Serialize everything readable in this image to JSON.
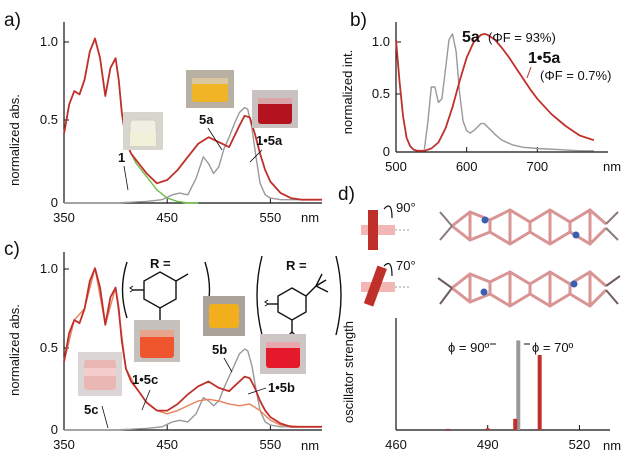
{
  "panels": {
    "a": {
      "label": "a)"
    },
    "b": {
      "label": "b)"
    },
    "c": {
      "label": "c)"
    },
    "d": {
      "label": "d)",
      "angle1": "90°",
      "angle2": "70°"
    }
  },
  "colors": {
    "red": "#c0302b",
    "gray": "#999999",
    "green": "#6cc04a",
    "orange": "#e8825a",
    "molecule": "#d99494",
    "nitrogen": "#3a5fb0"
  },
  "chart_data": [
    {
      "panel": "a",
      "type": "line",
      "title": "",
      "xlabel": "nm",
      "ylabel": "normalized abs.",
      "xlim": [
        350,
        600
      ],
      "ylim": [
        0,
        1.1
      ],
      "xticks": [
        350,
        450,
        550
      ],
      "yticks": [
        "0",
        "0.5",
        "1.0"
      ],
      "grid": false,
      "vial_labels": [
        "1",
        "5a",
        "1•5a"
      ],
      "series": [
        {
          "name": "1",
          "color": "green",
          "x": [
            350,
            355,
            360,
            365,
            370,
            375,
            380,
            385,
            390,
            395,
            400,
            403,
            406,
            410,
            415,
            420,
            430,
            440,
            450,
            460,
            470,
            480
          ],
          "y": [
            0.42,
            0.6,
            0.68,
            0.66,
            0.75,
            0.92,
            1.0,
            0.88,
            0.65,
            0.82,
            0.88,
            0.75,
            0.55,
            0.38,
            0.3,
            0.24,
            0.16,
            0.08,
            0.03,
            0.01,
            0.0,
            0.0
          ]
        },
        {
          "name": "5a",
          "color": "gray",
          "x": [
            350,
            400,
            430,
            445,
            455,
            462,
            470,
            478,
            485,
            490,
            495,
            500,
            505,
            510,
            515,
            520,
            525,
            528,
            532,
            536,
            540,
            545,
            550,
            560,
            575,
            590,
            600
          ],
          "y": [
            0.0,
            0.0,
            0.01,
            0.02,
            0.05,
            0.06,
            0.05,
            0.15,
            0.28,
            0.24,
            0.18,
            0.22,
            0.33,
            0.4,
            0.48,
            0.55,
            0.58,
            0.57,
            0.46,
            0.28,
            0.12,
            0.05,
            0.03,
            0.02,
            0.02,
            0.02,
            0.02
          ]
        },
        {
          "name": "1•5a",
          "color": "red",
          "x": [
            350,
            355,
            360,
            365,
            370,
            375,
            380,
            385,
            390,
            395,
            400,
            403,
            406,
            410,
            415,
            420,
            430,
            440,
            450,
            460,
            470,
            480,
            490,
            500,
            510,
            520,
            525,
            530,
            535,
            540,
            545,
            550,
            560,
            570,
            580,
            590,
            600
          ],
          "y": [
            0.42,
            0.6,
            0.68,
            0.66,
            0.75,
            0.92,
            1.0,
            0.88,
            0.65,
            0.82,
            0.88,
            0.75,
            0.55,
            0.38,
            0.3,
            0.26,
            0.18,
            0.12,
            0.14,
            0.2,
            0.28,
            0.36,
            0.4,
            0.37,
            0.34,
            0.47,
            0.53,
            0.52,
            0.42,
            0.3,
            0.2,
            0.13,
            0.06,
            0.03,
            0.02,
            0.02,
            0.02
          ]
        }
      ]
    },
    {
      "panel": "b",
      "type": "line",
      "title": "",
      "xlabel": "nm",
      "ylabel": "normalized int.",
      "xlim": [
        500,
        800
      ],
      "ylim": [
        0,
        1.1
      ],
      "xticks": [
        500,
        600,
        700
      ],
      "yticks": [
        "0",
        "0.5",
        "1.0"
      ],
      "grid": false,
      "annotations": {
        "s5a_name": "5a",
        "s5a_phi": "(ΦF = 93%)",
        "s15a_name": "1•5a",
        "s15a_phi": "(ΦF = 0.7%)"
      },
      "series": [
        {
          "name": "5a",
          "color": "gray",
          "x": [
            540,
            545,
            550,
            555,
            560,
            565,
            570,
            575,
            580,
            585,
            590,
            595,
            600,
            605,
            610,
            615,
            620,
            625,
            630,
            640,
            650,
            665,
            680,
            700,
            730,
            760,
            780
          ],
          "y": [
            0.02,
            0.25,
            0.55,
            0.55,
            0.42,
            0.45,
            0.7,
            0.95,
            1.0,
            0.85,
            0.5,
            0.26,
            0.18,
            0.16,
            0.18,
            0.21,
            0.24,
            0.24,
            0.21,
            0.15,
            0.1,
            0.06,
            0.04,
            0.03,
            0.02,
            0.01,
            0.01
          ]
        },
        {
          "name": "1•5a",
          "color": "red",
          "x": [
            500,
            505,
            510,
            515,
            520,
            525,
            530,
            540,
            550,
            560,
            570,
            580,
            590,
            600,
            610,
            620,
            625,
            630,
            640,
            650,
            660,
            670,
            680,
            690,
            700,
            720,
            740,
            760,
            780
          ],
          "y": [
            0.95,
            0.6,
            0.3,
            0.12,
            0.05,
            0.02,
            0.01,
            0.01,
            0.03,
            0.08,
            0.2,
            0.38,
            0.6,
            0.8,
            0.93,
            0.99,
            1.0,
            0.99,
            0.95,
            0.88,
            0.8,
            0.71,
            0.62,
            0.53,
            0.45,
            0.32,
            0.22,
            0.14,
            0.1
          ]
        }
      ]
    },
    {
      "panel": "c",
      "type": "line",
      "title": "",
      "xlabel": "nm",
      "ylabel": "normalized abs.",
      "xlim": [
        350,
        600
      ],
      "ylim": [
        0,
        1.1
      ],
      "xticks": [
        350,
        450,
        550
      ],
      "yticks": [
        "0",
        "0.5",
        "1.0"
      ],
      "grid": false,
      "substituent_1": "R =",
      "substituent_2": "R =",
      "vial_labels": [
        "5c",
        "1•5c",
        "5b",
        "1•5b"
      ],
      "series": [
        {
          "name": "5c",
          "color": "gray",
          "x": [
            350,
            400,
            430,
            445,
            455,
            462,
            470,
            478,
            485,
            490,
            495,
            500,
            505,
            510,
            515,
            520,
            525,
            528,
            532,
            536,
            540,
            545,
            550,
            560,
            600
          ],
          "y": [
            0.0,
            0.0,
            0.01,
            0.02,
            0.05,
            0.06,
            0.05,
            0.1,
            0.2,
            0.18,
            0.15,
            0.18,
            0.26,
            0.33,
            0.4,
            0.47,
            0.5,
            0.49,
            0.4,
            0.25,
            0.12,
            0.05,
            0.03,
            0.02,
            0.02
          ]
        },
        {
          "name": "1•5c",
          "color": "orange",
          "x": [
            350,
            360,
            370,
            380,
            390,
            400,
            410,
            420,
            430,
            440,
            450,
            460,
            470,
            480,
            490,
            500,
            510,
            520,
            530,
            540,
            550,
            560,
            580,
            600
          ],
          "y": [
            0.42,
            0.68,
            0.75,
            1.0,
            0.65,
            0.88,
            0.38,
            0.26,
            0.17,
            0.12,
            0.1,
            0.12,
            0.15,
            0.18,
            0.19,
            0.18,
            0.16,
            0.15,
            0.16,
            0.12,
            0.06,
            0.03,
            0.02,
            0.02
          ]
        },
        {
          "name": "1•5b",
          "color": "red",
          "x": [
            350,
            355,
            360,
            365,
            370,
            375,
            380,
            385,
            390,
            395,
            400,
            403,
            406,
            410,
            415,
            420,
            430,
            440,
            450,
            460,
            470,
            480,
            490,
            500,
            510,
            520,
            525,
            530,
            535,
            540,
            545,
            550,
            560,
            570,
            580,
            600
          ],
          "y": [
            0.42,
            0.6,
            0.68,
            0.66,
            0.75,
            0.92,
            1.0,
            0.88,
            0.65,
            0.82,
            0.88,
            0.75,
            0.55,
            0.38,
            0.3,
            0.26,
            0.17,
            0.12,
            0.12,
            0.16,
            0.22,
            0.27,
            0.3,
            0.26,
            0.24,
            0.3,
            0.33,
            0.32,
            0.26,
            0.18,
            0.12,
            0.08,
            0.04,
            0.02,
            0.02,
            0.02
          ]
        }
      ]
    },
    {
      "panel": "d",
      "type": "bar",
      "title": "",
      "xlabel": "nm",
      "ylabel": "oscillator strength",
      "xlim": [
        460,
        530
      ],
      "xticks": [
        460,
        490,
        520
      ],
      "ylim": [
        0,
        1.0
      ],
      "grid": false,
      "labels": [
        "ϕ = 90º",
        "ϕ = 70º"
      ],
      "series": [
        {
          "name": "ϕ = 90º",
          "color": "gray",
          "x": [
            500
          ],
          "values": [
            0.8
          ]
        },
        {
          "name": "ϕ = 70º",
          "color": "red",
          "x": [
            477,
            490,
            499,
            507
          ],
          "values": [
            0.01,
            0.015,
            0.1,
            0.67
          ]
        }
      ]
    }
  ]
}
